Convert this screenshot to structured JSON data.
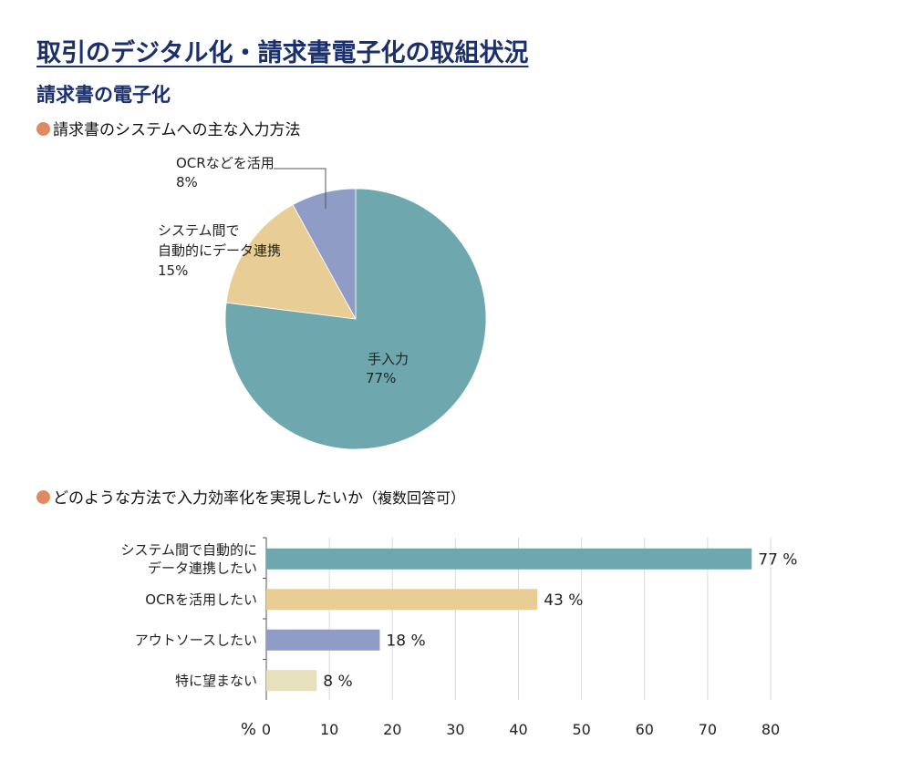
{
  "title": "取引のデジタル化・請求書電子化の取組状況",
  "subtitle": "請求書の電子化",
  "colors": {
    "title": "#1a2f6b",
    "bullet": "#e08a62",
    "teal": "#6ea8ae",
    "sand": "#e8cd95",
    "lavender": "#8f9cc6",
    "beige": "#e6e0bd"
  },
  "chart_data": [
    {
      "type": "pie",
      "title": "請求書のシステムへの主な入力方法",
      "unit": "%",
      "slices": [
        {
          "label": "手入力",
          "value": 77,
          "value_label": "77%",
          "color": "#6ea8ae"
        },
        {
          "label": "システム間で自動的にデータ連携",
          "label_lines": [
            "システム間で",
            "自動的にデータ連携"
          ],
          "value": 15,
          "value_label": "15%",
          "color": "#e8cd95"
        },
        {
          "label": "OCRなどを活用",
          "value": 8,
          "value_label": "8%",
          "color": "#8f9cc6"
        }
      ]
    },
    {
      "type": "bar",
      "orientation": "horizontal",
      "title": "どのような方法で入力効率化を実現したいか",
      "title_note": "（複数回答可）",
      "categories": [
        "システム間で自動的にデータ連携したい",
        "OCRを活用したい",
        "アウトソースしたい",
        "特に望まない"
      ],
      "category_lines": [
        [
          "システム間で自動的に",
          "データ連携したい"
        ],
        [
          "OCRを活用したい"
        ],
        [
          "アウトソースしたい"
        ],
        [
          "特に望まない"
        ]
      ],
      "values": [
        77,
        43,
        18,
        8
      ],
      "value_labels": [
        "77 %",
        "43 %",
        "18 %",
        "8 %"
      ],
      "colors": [
        "#6ea8ae",
        "#e8cd95",
        "#8f9cc6",
        "#e6e0bd"
      ],
      "xlim": [
        0,
        80
      ],
      "xticks": [
        "0",
        "10",
        "20",
        "30",
        "40",
        "50",
        "60",
        "70",
        "80"
      ],
      "xunit": "%",
      "grid": true
    }
  ]
}
